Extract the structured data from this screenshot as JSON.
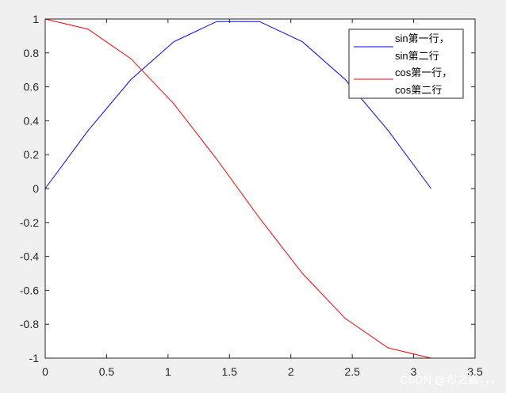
{
  "chart_data": {
    "type": "line",
    "title": "",
    "xlabel": "",
    "ylabel": "",
    "xlim": [
      0,
      3.5
    ],
    "ylim": [
      -1,
      1
    ],
    "xticks": [
      "0",
      "0.5",
      "1",
      "1.5",
      "2",
      "2.5",
      "3",
      "3.5"
    ],
    "yticks": [
      "-1",
      "-0.8",
      "-0.6",
      "-0.4",
      "-0.2",
      "0",
      "0.2",
      "0.4",
      "0.6",
      "0.8",
      "1"
    ],
    "grid": false,
    "legend_placement": "top-right",
    "series": [
      {
        "name": "sin第一行，\nsin第二行",
        "color": "#0000ff",
        "x": [
          0,
          0.349,
          0.698,
          1.047,
          1.396,
          1.745,
          2.094,
          2.443,
          2.793,
          3.142
        ],
        "y": [
          0,
          0.342,
          0.643,
          0.866,
          0.985,
          0.985,
          0.866,
          0.643,
          0.342,
          0
        ]
      },
      {
        "name": "cos第一行，\ncos第二行",
        "color": "#ff0000",
        "x": [
          0,
          0.349,
          0.698,
          1.047,
          1.396,
          1.745,
          2.094,
          2.443,
          2.793,
          3.142
        ],
        "y": [
          1,
          0.94,
          0.766,
          0.5,
          0.174,
          -0.174,
          -0.5,
          -0.766,
          -0.94,
          -1
        ]
      }
    ]
  },
  "legend": {
    "entries": [
      {
        "line1": "sin第一行，",
        "line2": "sin第二行",
        "color": "#0000ff"
      },
      {
        "line1": "cos第一行，",
        "line2": "cos第二行",
        "color": "#ff0000"
      }
    ]
  },
  "watermark": "CSDN @布之盗，，，"
}
